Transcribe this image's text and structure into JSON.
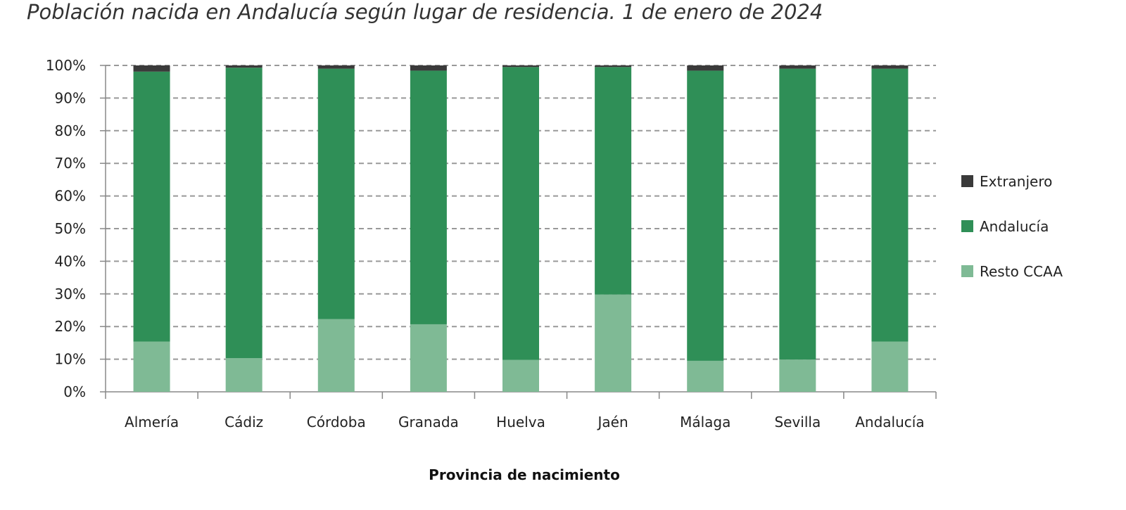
{
  "chart_data": {
    "type": "bar",
    "stacked": true,
    "percent": true,
    "title": "Población nacida en Andalucía según lugar de residencia. 1 de enero de 2024",
    "xlabel": "Provincia de nacimiento",
    "ylabel": "",
    "ylim": [
      0,
      100
    ],
    "yticks": [
      "0%",
      "10%",
      "20%",
      "30%",
      "40%",
      "50%",
      "60%",
      "70%",
      "80%",
      "90%",
      "100%"
    ],
    "grid": true,
    "legend_position": "right",
    "categories": [
      "Almería",
      "Cádiz",
      "Córdoba",
      "Granada",
      "Huelva",
      "Jaén",
      "Málaga",
      "Sevilla",
      "Andalucía"
    ],
    "series": [
      {
        "name": "Resto CCAA",
        "color": "#7fba95",
        "values": [
          15.4,
          10.3,
          22.3,
          20.7,
          9.8,
          29.8,
          9.5,
          9.9,
          15.4
        ]
      },
      {
        "name": "Andalucía",
        "color": "#2f8f57",
        "values": [
          82.7,
          89.0,
          76.7,
          77.7,
          89.7,
          69.7,
          88.9,
          89.1,
          83.6
        ]
      },
      {
        "name": "Extranjero",
        "color": "#3a3a3a",
        "values": [
          1.9,
          0.7,
          1.0,
          1.6,
          0.5,
          0.5,
          1.6,
          1.0,
          1.0
        ]
      }
    ]
  }
}
